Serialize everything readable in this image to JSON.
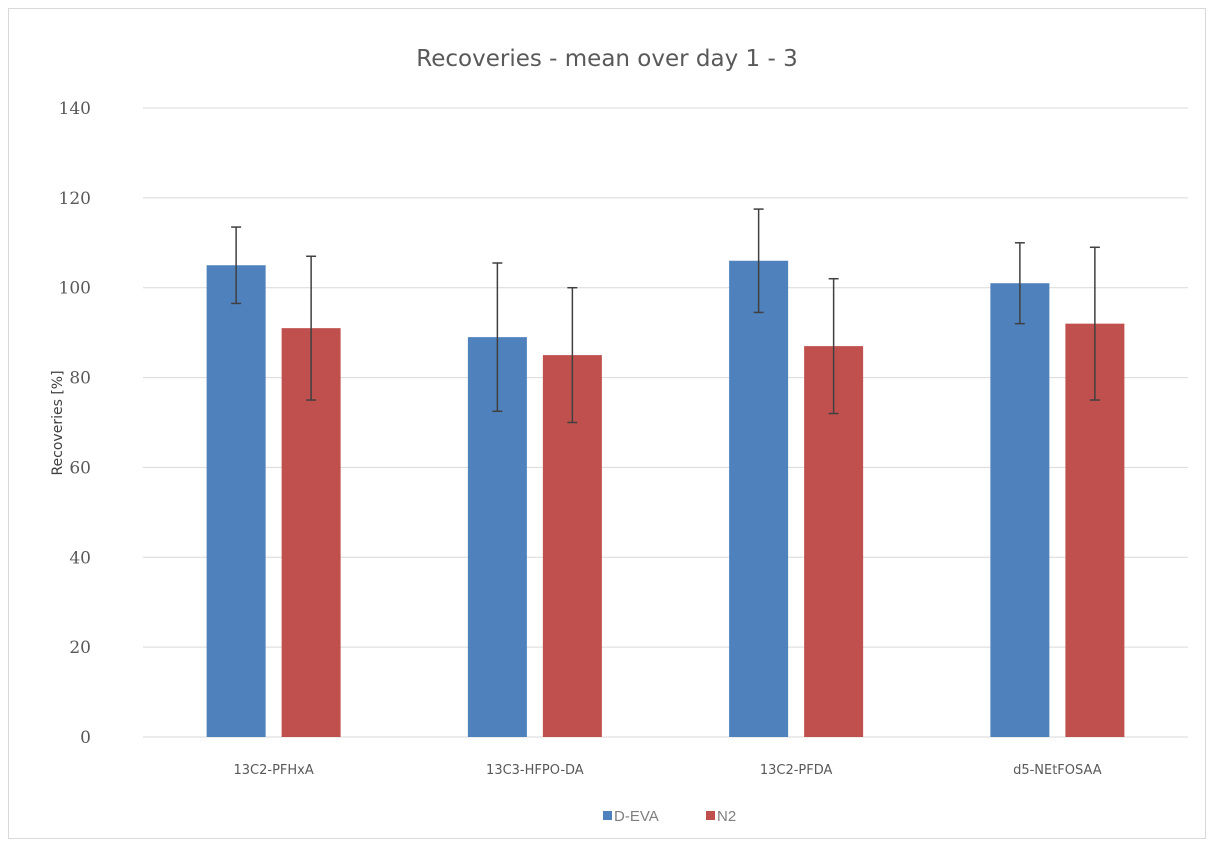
{
  "chart_data": {
    "type": "bar",
    "title": "Recoveries - mean over day 1 - 3",
    "xlabel": "",
    "ylabel": "Recoveries [%]",
    "ylim": [
      0,
      140
    ],
    "yticks": [
      0,
      20,
      40,
      60,
      80,
      100,
      120,
      140
    ],
    "grid": true,
    "legend_position": "bottom",
    "categories": [
      "13C2-PFHxA",
      "13C3-HFPO-DA",
      "13C2-PFDA",
      "d5-NEtFOSAA"
    ],
    "series": [
      {
        "name": "D-EVA",
        "color": "#4f81bd",
        "values": [
          105,
          89,
          106,
          101
        ],
        "errors": [
          8.5,
          16.5,
          11.5,
          9
        ]
      },
      {
        "name": "N2",
        "color": "#c0504d",
        "values": [
          91,
          85,
          87,
          92
        ],
        "errors": [
          16,
          15,
          15,
          17
        ]
      }
    ]
  }
}
